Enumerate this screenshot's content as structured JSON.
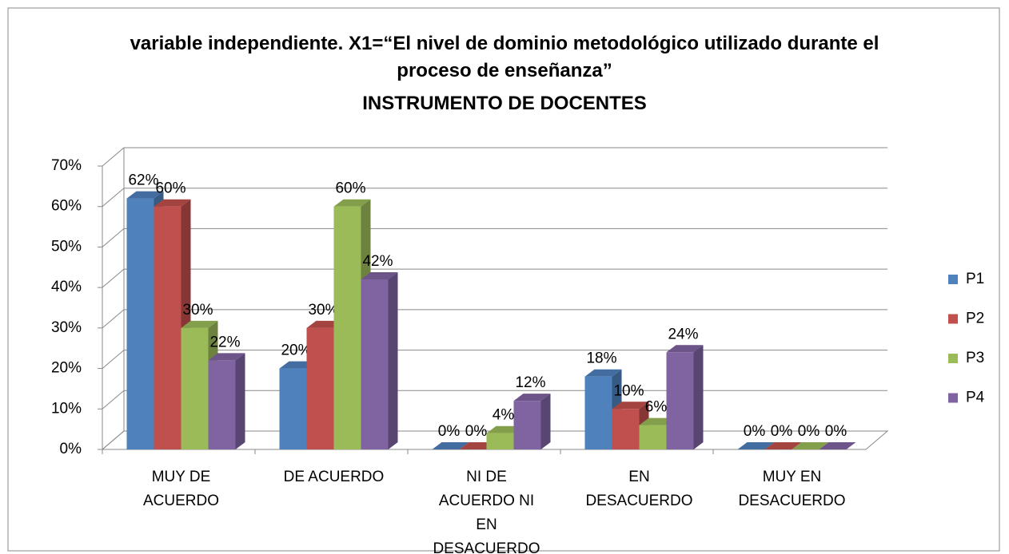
{
  "chart_data": {
    "type": "bar3d",
    "title": "variable independiente. X1=“El nivel de dominio metodológico  utilizado durante el proceso de enseñanza”",
    "subtitle": "INSTRUMENTO DE DOCENTES",
    "categories": [
      "MUY DE ACUERDO",
      "DE ACUERDO",
      "NI DE ACUERDO NI EN DESACUERDO",
      "EN DESACUERDO",
      "MUY  EN DESACUERDO"
    ],
    "series": [
      {
        "name": "P1",
        "color": "#4f81bd",
        "values": [
          62,
          20,
          0,
          18,
          0
        ],
        "value_labels": [
          "62%",
          "20%",
          "0%",
          "18%",
          "0%"
        ]
      },
      {
        "name": "P2",
        "color": "#c0504d",
        "values": [
          60,
          30,
          0,
          10,
          0
        ],
        "value_labels": [
          "60%",
          "30%",
          "0%",
          "10%",
          "0%"
        ]
      },
      {
        "name": "P3",
        "color": "#9bbb59",
        "values": [
          30,
          60,
          4,
          6,
          0
        ],
        "value_labels": [
          "30%",
          "60%",
          "4%",
          "6%",
          "0%"
        ]
      },
      {
        "name": "P4",
        "color": "#8064a2",
        "values": [
          22,
          42,
          12,
          24,
          0
        ],
        "value_labels": [
          "22%",
          "42%",
          "12%",
          "24%",
          "0%"
        ]
      }
    ],
    "ylim": [
      0,
      70
    ],
    "yticks": [
      {
        "value": 0,
        "label": "0%"
      },
      {
        "value": 10,
        "label": "10%"
      },
      {
        "value": 20,
        "label": "20%"
      },
      {
        "value": 30,
        "label": "30%"
      },
      {
        "value": 40,
        "label": "40%"
      },
      {
        "value": 50,
        "label": "50%"
      },
      {
        "value": 60,
        "label": "60%"
      },
      {
        "value": 70,
        "label": "70%"
      }
    ],
    "grid": true,
    "legend": "right"
  }
}
